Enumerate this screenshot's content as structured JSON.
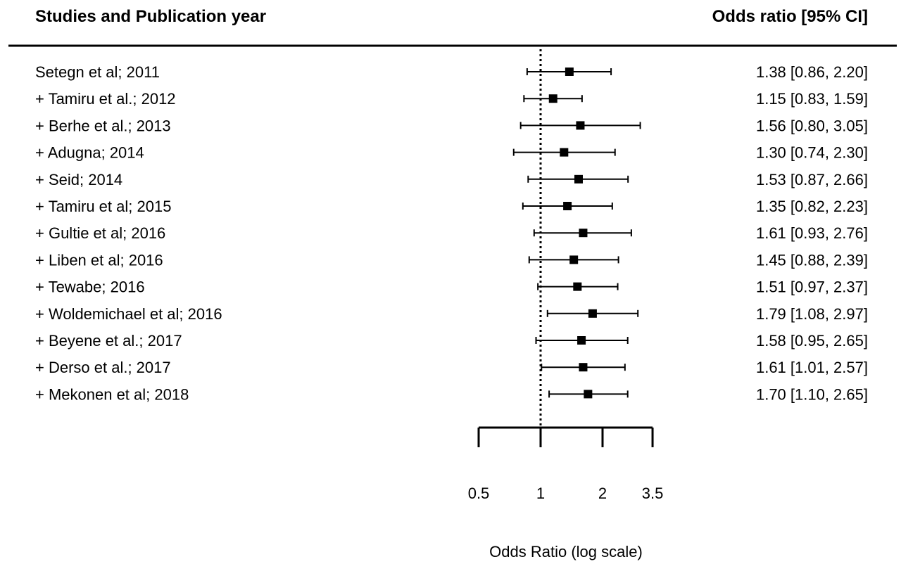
{
  "chart_data": {
    "type": "forest",
    "header_left": "Studies and Publication year",
    "header_right": "Odds ratio [95% CI]",
    "xlabel": "Odds Ratio (log scale)",
    "x_scale": "log",
    "x_ticks": [
      0.5,
      1,
      2,
      3.5
    ],
    "x_tick_labels": [
      "0.5",
      "1",
      "2",
      "3.5"
    ],
    "reference_line": 1,
    "rows": [
      {
        "label": "Setegn et al; 2011",
        "or": 1.38,
        "lo": 0.86,
        "hi": 2.2,
        "text": "1.38 [0.86, 2.20]"
      },
      {
        "label": "+ Tamiru et al.; 2012",
        "or": 1.15,
        "lo": 0.83,
        "hi": 1.59,
        "text": "1.15 [0.83, 1.59]"
      },
      {
        "label": "+ Berhe et al.; 2013",
        "or": 1.56,
        "lo": 0.8,
        "hi": 3.05,
        "text": "1.56 [0.80, 3.05]"
      },
      {
        "label": "+ Adugna; 2014",
        "or": 1.3,
        "lo": 0.74,
        "hi": 2.3,
        "text": "1.30 [0.74, 2.30]"
      },
      {
        "label": "+ Seid; 2014",
        "or": 1.53,
        "lo": 0.87,
        "hi": 2.66,
        "text": "1.53 [0.87, 2.66]"
      },
      {
        "label": "+ Tamiru et al; 2015",
        "or": 1.35,
        "lo": 0.82,
        "hi": 2.23,
        "text": "1.35 [0.82, 2.23]"
      },
      {
        "label": "+ Gultie et al; 2016",
        "or": 1.61,
        "lo": 0.93,
        "hi": 2.76,
        "text": "1.61 [0.93, 2.76]"
      },
      {
        "label": "+ Liben et al; 2016",
        "or": 1.45,
        "lo": 0.88,
        "hi": 2.39,
        "text": "1.45 [0.88, 2.39]"
      },
      {
        "label": "+ Tewabe; 2016",
        "or": 1.51,
        "lo": 0.97,
        "hi": 2.37,
        "text": "1.51 [0.97, 2.37]"
      },
      {
        "label": "+ Woldemichael et al; 2016",
        "or": 1.79,
        "lo": 1.08,
        "hi": 2.97,
        "text": "1.79 [1.08, 2.97]"
      },
      {
        "label": "+ Beyene et al.; 2017",
        "or": 1.58,
        "lo": 0.95,
        "hi": 2.65,
        "text": "1.58 [0.95, 2.65]"
      },
      {
        "label": "+ Derso et al.; 2017",
        "or": 1.61,
        "lo": 1.01,
        "hi": 2.57,
        "text": "1.61 [1.01, 2.57]"
      },
      {
        "label": "+ Mekonen et al; 2018",
        "or": 1.7,
        "lo": 1.1,
        "hi": 2.65,
        "text": "1.70 [1.10, 2.65]"
      }
    ]
  }
}
